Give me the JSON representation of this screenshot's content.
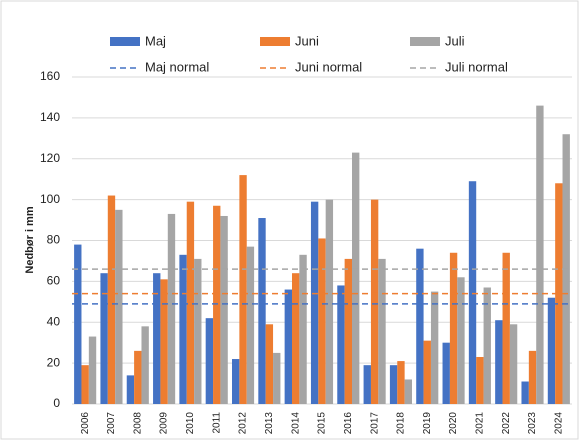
{
  "chart_data": {
    "type": "bar",
    "y_label": "Nedbør i mm",
    "categories": [
      "2006",
      "2007",
      "2008",
      "2009",
      "2010",
      "2011",
      "2012",
      "2013",
      "2014",
      "2015",
      "2016",
      "2017",
      "2018",
      "2019",
      "2020",
      "2021",
      "2022",
      "2023",
      "2024"
    ],
    "series": [
      {
        "name": "Maj",
        "color": "#4472c4",
        "values": [
          78,
          64,
          14,
          64,
          73,
          42,
          22,
          91,
          56,
          99,
          58,
          19,
          19,
          76,
          30,
          109,
          41,
          11,
          52
        ]
      },
      {
        "name": "Juni",
        "color": "#ed7d31",
        "values": [
          19,
          102,
          26,
          61,
          99,
          97,
          112,
          39,
          64,
          81,
          71,
          100,
          21,
          31,
          74,
          23,
          74,
          26,
          108
        ]
      },
      {
        "name": "Juli",
        "color": "#a5a5a5",
        "values": [
          33,
          95,
          38,
          93,
          71,
          92,
          77,
          25,
          73,
          100,
          123,
          71,
          12,
          55,
          62,
          57,
          39,
          146,
          132
        ]
      }
    ],
    "normals": [
      {
        "name": "Maj normal",
        "color": "#4472c4",
        "value": 49
      },
      {
        "name": "Juni normal",
        "color": "#ed7d31",
        "value": 54
      },
      {
        "name": "Juli normal",
        "color": "#a5a5a5",
        "value": 66
      }
    ],
    "ylim": [
      0,
      160
    ],
    "yticks": [
      0,
      20,
      40,
      60,
      80,
      100,
      120,
      140,
      160
    ],
    "grid": true
  }
}
